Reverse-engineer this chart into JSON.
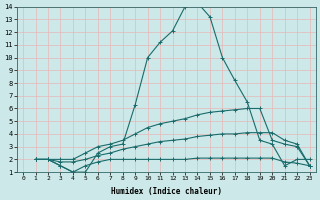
{
  "xlabel": "Humidex (Indice chaleur)",
  "ylabel": "",
  "background_color": "#cce8e8",
  "line_color": "#1a6b6b",
  "grid_color": "#e8b8b8",
  "xlim": [
    -0.5,
    23.5
  ],
  "ylim": [
    1,
    14
  ],
  "xticks": [
    0,
    1,
    2,
    3,
    4,
    5,
    6,
    7,
    8,
    9,
    10,
    11,
    12,
    13,
    14,
    15,
    16,
    17,
    18,
    19,
    20,
    21,
    22,
    23
  ],
  "yticks": [
    1,
    2,
    3,
    4,
    5,
    6,
    7,
    8,
    9,
    10,
    11,
    12,
    13,
    14
  ],
  "lines": [
    {
      "x": [
        1,
        2,
        3,
        4,
        5,
        6,
        7,
        8,
        9,
        10,
        11,
        12,
        13,
        14,
        15,
        16,
        17,
        18,
        19,
        20,
        21,
        22,
        23
      ],
      "y": [
        2,
        2,
        1.5,
        1,
        1,
        2.5,
        3,
        3.2,
        6.3,
        10,
        11.2,
        12.1,
        14,
        14.3,
        13.2,
        10,
        8.2,
        6.5,
        3.5,
        3.2,
        1.5,
        2,
        2
      ]
    },
    {
      "x": [
        1,
        2,
        3,
        4,
        5,
        6,
        7,
        8,
        9,
        10,
        11,
        12,
        13,
        14,
        15,
        16,
        17,
        18,
        19,
        20,
        21,
        22,
        23
      ],
      "y": [
        2,
        2,
        2,
        2,
        2.5,
        3,
        3.2,
        3.5,
        4,
        4.5,
        4.8,
        5,
        5.2,
        5.5,
        5.7,
        5.8,
        5.9,
        6.0,
        6.0,
        3.5,
        3.2,
        3.0,
        1.5
      ]
    },
    {
      "x": [
        1,
        2,
        3,
        4,
        5,
        6,
        7,
        8,
        9,
        10,
        11,
        12,
        13,
        14,
        15,
        16,
        17,
        18,
        19,
        20,
        21,
        22,
        23
      ],
      "y": [
        2,
        2,
        1.8,
        1.8,
        2.0,
        2.3,
        2.5,
        2.8,
        3.0,
        3.2,
        3.4,
        3.5,
        3.6,
        3.8,
        3.9,
        4.0,
        4.0,
        4.1,
        4.1,
        4.1,
        3.5,
        3.2,
        1.5
      ]
    },
    {
      "x": [
        1,
        2,
        3,
        4,
        5,
        6,
        7,
        8,
        9,
        10,
        11,
        12,
        13,
        14,
        15,
        16,
        17,
        18,
        19,
        20,
        21,
        22,
        23
      ],
      "y": [
        2,
        2,
        1.5,
        1,
        1.5,
        1.8,
        2.0,
        2.0,
        2.0,
        2.0,
        2.0,
        2.0,
        2.0,
        2.1,
        2.1,
        2.1,
        2.1,
        2.1,
        2.1,
        2.1,
        1.8,
        1.7,
        1.5
      ]
    }
  ]
}
